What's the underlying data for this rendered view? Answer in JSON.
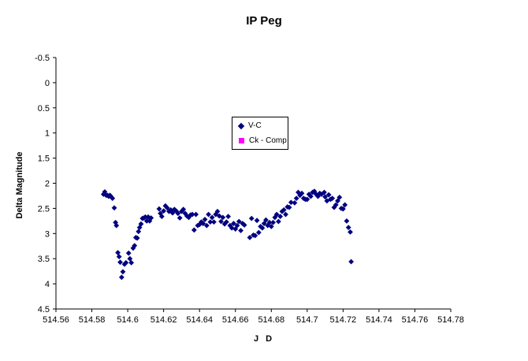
{
  "chart_data": {
    "type": "scatter",
    "title": "IP Peg",
    "xlabel": "J D",
    "ylabel": "Delta Magnitude",
    "xlim": [
      514.56,
      514.78
    ],
    "ylim": [
      4.5,
      -0.5
    ],
    "y_reversed": true,
    "xticks": [
      "514.56",
      "514.58",
      "514.6",
      "514.62",
      "514.64",
      "514.66",
      "514.68",
      "514.7",
      "514.72",
      "514.74",
      "514.76",
      "514.78"
    ],
    "yticks": [
      "-0.5",
      "0",
      "0.5",
      "1",
      "1.5",
      "2",
      "2.5",
      "3",
      "3.5",
      "4",
      "4.5"
    ],
    "grid": false,
    "legend_position": "center",
    "series": [
      {
        "name": "V-C",
        "color": "#000080",
        "marker": "diamond",
        "points": [
          [
            514.5865,
            2.22
          ],
          [
            514.5872,
            2.17
          ],
          [
            514.588,
            2.24
          ],
          [
            514.5887,
            2.24
          ],
          [
            514.5894,
            2.26
          ],
          [
            514.5901,
            2.24
          ],
          [
            514.5908,
            2.27
          ],
          [
            514.5915,
            2.3
          ],
          [
            514.5925,
            2.49
          ],
          [
            514.5932,
            2.78
          ],
          [
            514.5937,
            2.84
          ],
          [
            514.5945,
            3.38
          ],
          [
            514.5952,
            3.46
          ],
          [
            514.5958,
            3.57
          ],
          [
            514.5966,
            3.87
          ],
          [
            514.5973,
            3.76
          ],
          [
            514.5982,
            3.61
          ],
          [
            514.599,
            3.58
          ],
          [
            514.6005,
            3.39
          ],
          [
            514.6012,
            3.5
          ],
          [
            514.602,
            3.58
          ],
          [
            514.603,
            3.29
          ],
          [
            514.6038,
            3.24
          ],
          [
            514.6045,
            3.08
          ],
          [
            514.6053,
            3.09
          ],
          [
            514.606,
            2.96
          ],
          [
            514.6066,
            2.88
          ],
          [
            514.6074,
            2.81
          ],
          [
            514.6082,
            2.7
          ],
          [
            514.609,
            2.69
          ],
          [
            514.6098,
            2.67
          ],
          [
            514.6106,
            2.75
          ],
          [
            514.6114,
            2.67
          ],
          [
            514.6122,
            2.75
          ],
          [
            514.613,
            2.69
          ],
          [
            514.6175,
            2.51
          ],
          [
            514.6182,
            2.6
          ],
          [
            514.619,
            2.66
          ],
          [
            514.62,
            2.55
          ],
          [
            514.621,
            2.45
          ],
          [
            514.622,
            2.49
          ],
          [
            514.623,
            2.56
          ],
          [
            514.624,
            2.53
          ],
          [
            514.625,
            2.59
          ],
          [
            514.626,
            2.52
          ],
          [
            514.627,
            2.55
          ],
          [
            514.628,
            2.6
          ],
          [
            514.629,
            2.69
          ],
          [
            514.63,
            2.56
          ],
          [
            514.631,
            2.52
          ],
          [
            514.632,
            2.6
          ],
          [
            514.633,
            2.65
          ],
          [
            514.634,
            2.68
          ],
          [
            514.635,
            2.63
          ],
          [
            514.636,
            2.62
          ],
          [
            514.637,
            2.93
          ],
          [
            514.638,
            2.62
          ],
          [
            514.639,
            2.84
          ],
          [
            514.64,
            2.82
          ],
          [
            514.641,
            2.77
          ],
          [
            514.642,
            2.8
          ],
          [
            514.643,
            2.72
          ],
          [
            514.644,
            2.84
          ],
          [
            514.645,
            2.62
          ],
          [
            514.646,
            2.77
          ],
          [
            514.647,
            2.68
          ],
          [
            514.648,
            2.77
          ],
          [
            514.649,
            2.62
          ],
          [
            514.65,
            2.56
          ],
          [
            514.651,
            2.65
          ],
          [
            514.652,
            2.76
          ],
          [
            514.653,
            2.68
          ],
          [
            514.654,
            2.81
          ],
          [
            514.655,
            2.77
          ],
          [
            514.656,
            2.66
          ],
          [
            514.657,
            2.84
          ],
          [
            514.658,
            2.89
          ],
          [
            514.659,
            2.8
          ],
          [
            514.66,
            2.91
          ],
          [
            514.661,
            2.84
          ],
          [
            514.662,
            2.76
          ],
          [
            514.663,
            2.94
          ],
          [
            514.664,
            2.8
          ],
          [
            514.665,
            2.83
          ],
          [
            514.668,
            3.08
          ],
          [
            514.669,
            2.7
          ],
          [
            514.67,
            3.03
          ],
          [
            514.671,
            3.04
          ],
          [
            514.672,
            2.74
          ],
          [
            514.673,
            2.98
          ],
          [
            514.674,
            2.86
          ],
          [
            514.675,
            2.89
          ],
          [
            514.676,
            2.8
          ],
          [
            514.677,
            2.73
          ],
          [
            514.678,
            2.84
          ],
          [
            514.679,
            2.78
          ],
          [
            514.68,
            2.86
          ],
          [
            514.681,
            2.78
          ],
          [
            514.682,
            2.68
          ],
          [
            514.683,
            2.62
          ],
          [
            514.684,
            2.76
          ],
          [
            514.685,
            2.66
          ],
          [
            514.686,
            2.56
          ],
          [
            514.687,
            2.53
          ],
          [
            514.688,
            2.62
          ],
          [
            514.689,
            2.47
          ],
          [
            514.69,
            2.48
          ],
          [
            514.691,
            2.38
          ],
          [
            514.693,
            2.39
          ],
          [
            514.694,
            2.3
          ],
          [
            514.695,
            2.18
          ],
          [
            514.696,
            2.24
          ],
          [
            514.697,
            2.2
          ],
          [
            514.698,
            2.3
          ],
          [
            514.699,
            2.32
          ],
          [
            514.7,
            2.32
          ],
          [
            514.701,
            2.22
          ],
          [
            514.702,
            2.26
          ],
          [
            514.703,
            2.18
          ],
          [
            514.704,
            2.16
          ],
          [
            514.705,
            2.22
          ],
          [
            514.706,
            2.26
          ],
          [
            514.707,
            2.2
          ],
          [
            514.708,
            2.22
          ],
          [
            514.7095,
            2.18
          ],
          [
            514.71,
            2.27
          ],
          [
            514.711,
            2.35
          ],
          [
            514.712,
            2.23
          ],
          [
            514.713,
            2.32
          ],
          [
            514.714,
            2.3
          ],
          [
            514.715,
            2.48
          ],
          [
            514.716,
            2.43
          ],
          [
            514.717,
            2.35
          ],
          [
            514.718,
            2.28
          ],
          [
            514.719,
            2.5
          ],
          [
            514.72,
            2.51
          ],
          [
            514.721,
            2.43
          ],
          [
            514.722,
            2.75
          ],
          [
            514.723,
            2.88
          ],
          [
            514.724,
            2.97
          ],
          [
            514.7245,
            3.56
          ]
        ]
      },
      {
        "name": "Ck - Comp",
        "color": "#ff00ff",
        "marker": "square",
        "points": []
      }
    ]
  }
}
